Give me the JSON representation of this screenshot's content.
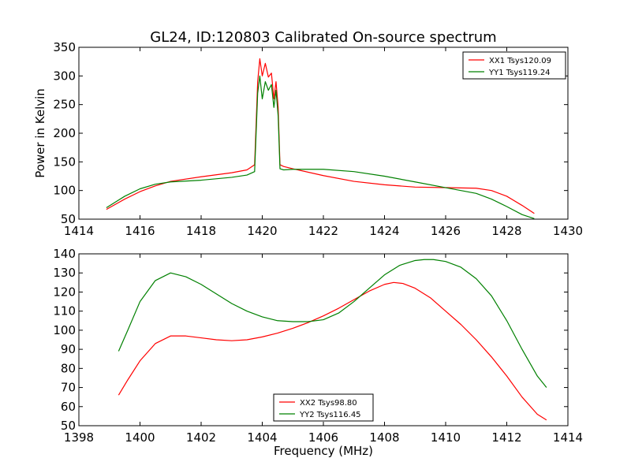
{
  "figure": {
    "title": "GL24, ID:120803 Calibrated On-source spectrum"
  },
  "colors": {
    "red": "#ff0000",
    "green": "#008000"
  },
  "chart_data": [
    {
      "type": "line",
      "title": "GL24, ID:120803 Calibrated On-source spectrum",
      "xlabel": "",
      "ylabel": "Power in Kelvin",
      "xlim": [
        1414,
        1430
      ],
      "ylim": [
        50,
        350
      ],
      "xticks": [
        1414,
        1416,
        1418,
        1420,
        1422,
        1424,
        1426,
        1428,
        1430
      ],
      "yticks": [
        50,
        100,
        150,
        200,
        250,
        300,
        350
      ],
      "legend_position": "top-right",
      "grid": false,
      "series": [
        {
          "name": "XX1 Tsys120.09",
          "color": "#ff0000",
          "x": [
            1414.9,
            1415.5,
            1416.0,
            1416.5,
            1417.0,
            1418.0,
            1419.0,
            1419.5,
            1419.75,
            1419.85,
            1419.92,
            1420.0,
            1420.1,
            1420.2,
            1420.3,
            1420.38,
            1420.45,
            1420.52,
            1420.58,
            1420.7,
            1421.0,
            1422.0,
            1423.0,
            1424.0,
            1425.0,
            1426.0,
            1427.0,
            1427.5,
            1428.0,
            1428.5,
            1428.9
          ],
          "y": [
            67,
            85,
            98,
            108,
            116,
            124,
            131,
            136,
            145,
            290,
            330,
            300,
            322,
            298,
            305,
            260,
            290,
            245,
            145,
            142,
            138,
            126,
            116,
            110,
            106,
            105,
            104,
            100,
            90,
            74,
            60
          ]
        },
        {
          "name": "YY1 Tsys119.24",
          "color": "#008000",
          "x": [
            1414.9,
            1415.5,
            1416.0,
            1416.5,
            1417.0,
            1418.0,
            1419.0,
            1419.5,
            1419.75,
            1419.85,
            1419.92,
            1420.0,
            1420.1,
            1420.2,
            1420.3,
            1420.38,
            1420.45,
            1420.52,
            1420.58,
            1420.7,
            1421.0,
            1422.0,
            1423.0,
            1424.0,
            1425.0,
            1426.0,
            1427.0,
            1427.5,
            1428.0,
            1428.5,
            1428.9
          ],
          "y": [
            70,
            90,
            103,
            111,
            115,
            118,
            123,
            127,
            133,
            270,
            300,
            260,
            290,
            275,
            285,
            245,
            275,
            230,
            138,
            136,
            137,
            137,
            133,
            125,
            115,
            105,
            95,
            85,
            72,
            58,
            51
          ]
        }
      ]
    },
    {
      "type": "line",
      "title": "",
      "xlabel": "Frequency (MHz)",
      "ylabel": "",
      "xlim": [
        1398,
        1414
      ],
      "ylim": [
        50,
        140
      ],
      "xticks": [
        1398,
        1400,
        1402,
        1404,
        1406,
        1408,
        1410,
        1412,
        1414
      ],
      "yticks": [
        50,
        60,
        70,
        80,
        90,
        100,
        110,
        120,
        130,
        140
      ],
      "legend_position": "bottom-center",
      "grid": false,
      "series": [
        {
          "name": "XX2 Tsys98.80",
          "color": "#ff0000",
          "x": [
            1399.3,
            1399.6,
            1400.0,
            1400.5,
            1401.0,
            1401.5,
            1402.0,
            1402.5,
            1403.0,
            1403.5,
            1404.0,
            1404.5,
            1405.0,
            1405.5,
            1406.0,
            1406.5,
            1407.0,
            1407.5,
            1408.0,
            1408.3,
            1408.6,
            1409.0,
            1409.5,
            1410.0,
            1410.5,
            1411.0,
            1411.5,
            1412.0,
            1412.5,
            1413.0,
            1413.3
          ],
          "y": [
            66,
            74,
            84,
            93,
            97,
            97,
            96,
            95,
            94.5,
            95,
            96.5,
            98.5,
            101,
            104,
            107.5,
            111.5,
            116,
            120.5,
            124,
            125,
            124.5,
            122,
            117,
            110,
            103,
            95,
            86,
            76,
            65,
            56,
            53
          ]
        },
        {
          "name": "YY2 Tsys116.45",
          "color": "#008000",
          "x": [
            1399.3,
            1399.6,
            1400.0,
            1400.5,
            1401.0,
            1401.5,
            1402.0,
            1402.5,
            1403.0,
            1403.5,
            1404.0,
            1404.5,
            1405.0,
            1405.5,
            1406.0,
            1406.5,
            1407.0,
            1407.5,
            1408.0,
            1408.5,
            1409.0,
            1409.3,
            1409.6,
            1410.0,
            1410.5,
            1411.0,
            1411.5,
            1412.0,
            1412.5,
            1413.0,
            1413.3
          ],
          "y": [
            89,
            100,
            115,
            126,
            130,
            128,
            124,
            119,
            114,
            110,
            107,
            105,
            104.5,
            104.5,
            105.5,
            109,
            115,
            122,
            129,
            134,
            136.5,
            137,
            137,
            136,
            133,
            127,
            118,
            105,
            90,
            76,
            70
          ]
        }
      ]
    }
  ]
}
